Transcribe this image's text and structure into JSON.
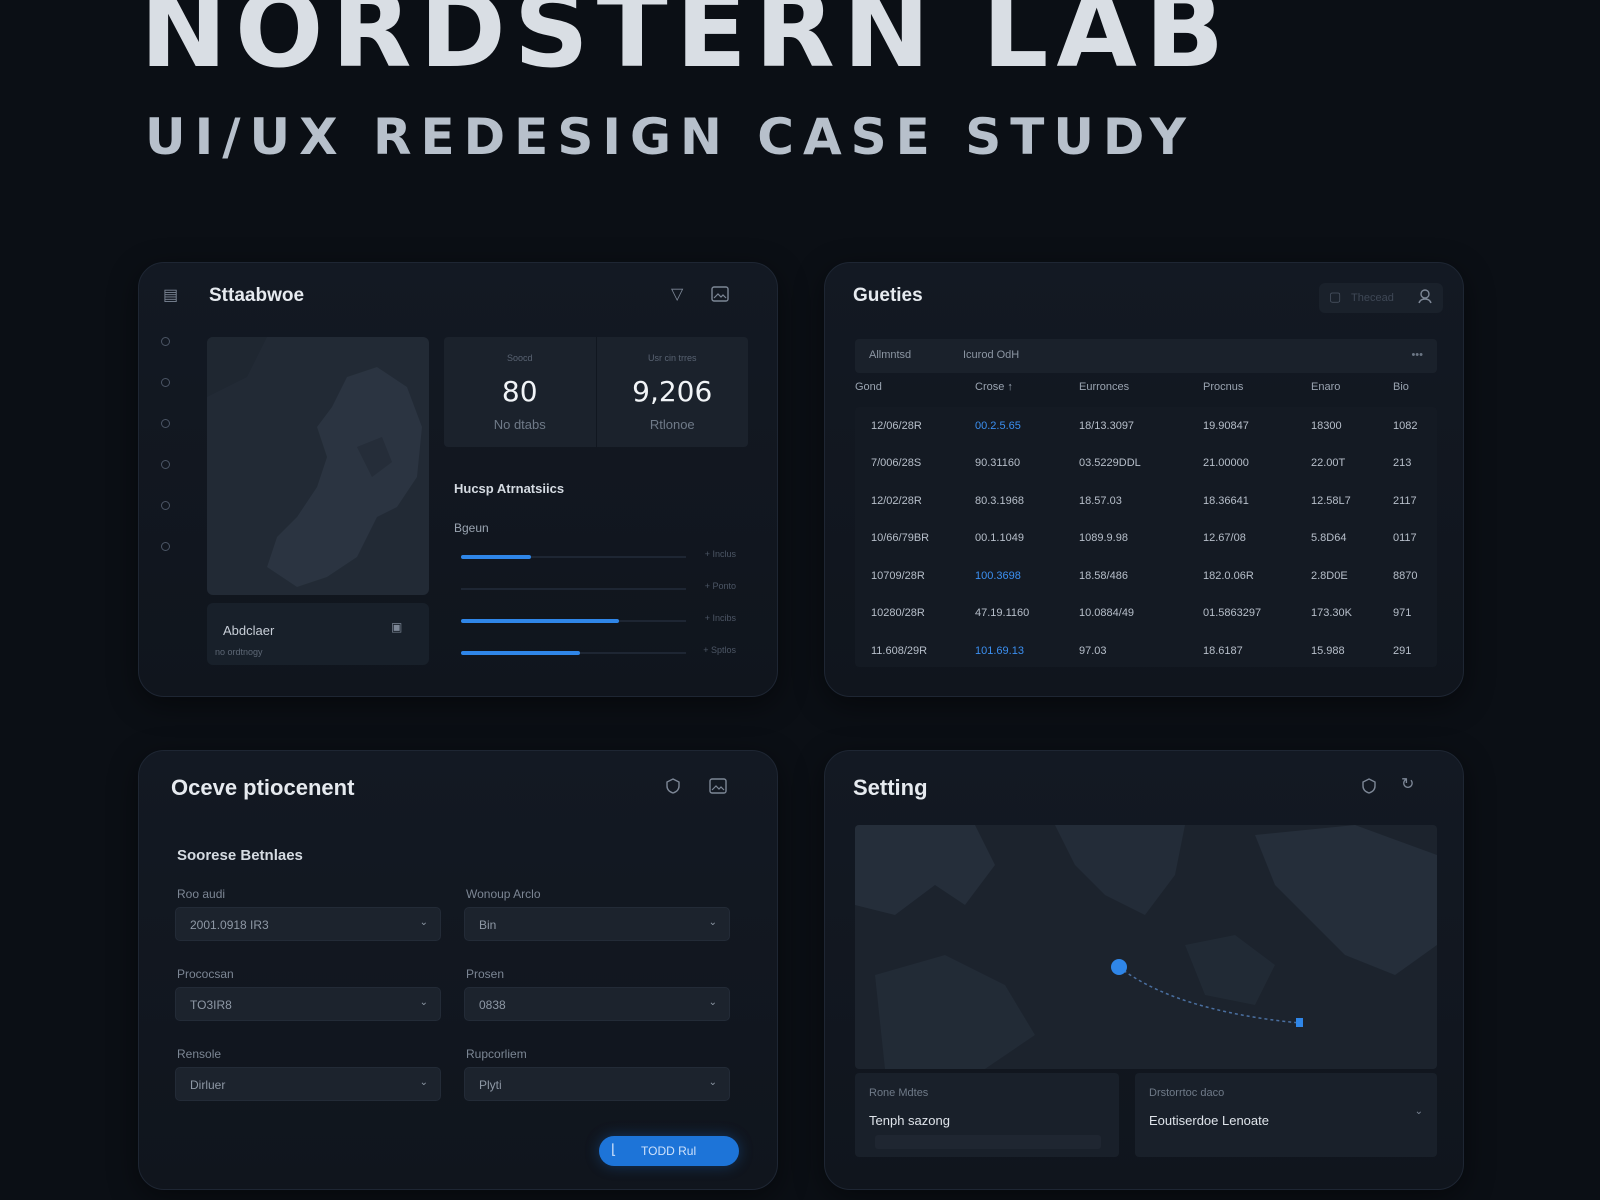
{
  "hero": {
    "title": "NORDSTERN LAB",
    "subtitle": "UI/UX REDESIGN CASE STUDY"
  },
  "colors": {
    "background": "#0b0f15",
    "panel": "#131923",
    "accent": "#2f86e8"
  },
  "dashboard": {
    "title": "Sttaabwoe",
    "header_icons": [
      "filter-icon",
      "image-icon"
    ],
    "sidebar_icons": [
      "nav-dot-1",
      "nav-dot-2",
      "nav-dot-3",
      "nav-dot-4",
      "nav-dot-5",
      "nav-dot-6"
    ],
    "map_caption": "Abdclaer",
    "map_caption_sub": "no ordtnogy",
    "stats": [
      {
        "caption": "Soocd",
        "value": "80",
        "label": "No dtabs"
      },
      {
        "caption": "Usr cin trres",
        "value": "9,206",
        "label": "Rtlonoe"
      }
    ],
    "section_title": "Hucsp Atrnatsiics",
    "section_subtitle": "Bgeun",
    "bars": [
      {
        "fill": 0.31,
        "label": "+ Inclus"
      },
      {
        "fill": 0.0,
        "label": "+ Ponto"
      },
      {
        "fill": 0.7,
        "label": "+ Incibs"
      },
      {
        "fill": 0.53,
        "label": "+ Sptlos"
      }
    ]
  },
  "queries": {
    "title": "Gueties",
    "search_placeholder": "Thecead",
    "toolbar": {
      "left": "Allmntsd",
      "middle": "Icurod OdH",
      "right": "•••"
    },
    "columns": [
      "Gond",
      "Crose ↑",
      "Eurronces",
      "Procnus",
      "Enaro",
      "Bio"
    ],
    "rows": [
      [
        "12/06/28R",
        "00.2.5.65",
        "18/13.3097",
        "19.90847",
        "18300",
        "1082"
      ],
      [
        "7/006/28S",
        "90.31160",
        "03.5229DDL",
        "21.00000",
        "22.00T",
        "213"
      ],
      [
        "12/02/28R",
        "80.3.1968",
        "18.57.03",
        "18.36641",
        "12.58L7",
        "2117"
      ],
      [
        "10/66/79BR",
        "00.1.1049",
        "1089.9.98",
        "12.67/08",
        "5.8D64",
        "0117"
      ],
      [
        "10709/28R",
        "100.3698",
        "18.58/486",
        "182.0.06R",
        "2.8D0E",
        "8870"
      ],
      [
        "10280/28R",
        "47.19.1160",
        "10.0884/49",
        "01.5863297",
        "173.30K",
        "971"
      ],
      [
        "11.608/29R",
        "101.69.13",
        "97.03",
        "18.6187",
        "15.988",
        "291"
      ]
    ],
    "highlight_rows": [
      0,
      4,
      6
    ]
  },
  "placement": {
    "title": "Oceve ptiocenent",
    "header_icons": [
      "shield-icon",
      "image-icon"
    ],
    "section_title": "Soorese Betnlaes",
    "fields": [
      {
        "label": "Roo audi",
        "value": "2001.0918 IR3"
      },
      {
        "label": "Wonoup Arclo",
        "value": "Bin"
      },
      {
        "label": "Prococsan",
        "value": "TO3IR8"
      },
      {
        "label": "Prosen",
        "value": "0838"
      },
      {
        "label": "Rensole",
        "value": "Dirluer"
      },
      {
        "label": "Rupcorliem",
        "value": "Plyti"
      }
    ],
    "button_label": "TODD Rul"
  },
  "setting": {
    "title": "Setting",
    "header_icons": [
      "shield-icon",
      "refresh-icon"
    ],
    "cards": [
      {
        "key": "Rone Mdtes",
        "value": "Tenph sazong"
      },
      {
        "key": "Drstorrtoc daco",
        "value": "Eoutiserdoe Lenoate"
      }
    ]
  }
}
